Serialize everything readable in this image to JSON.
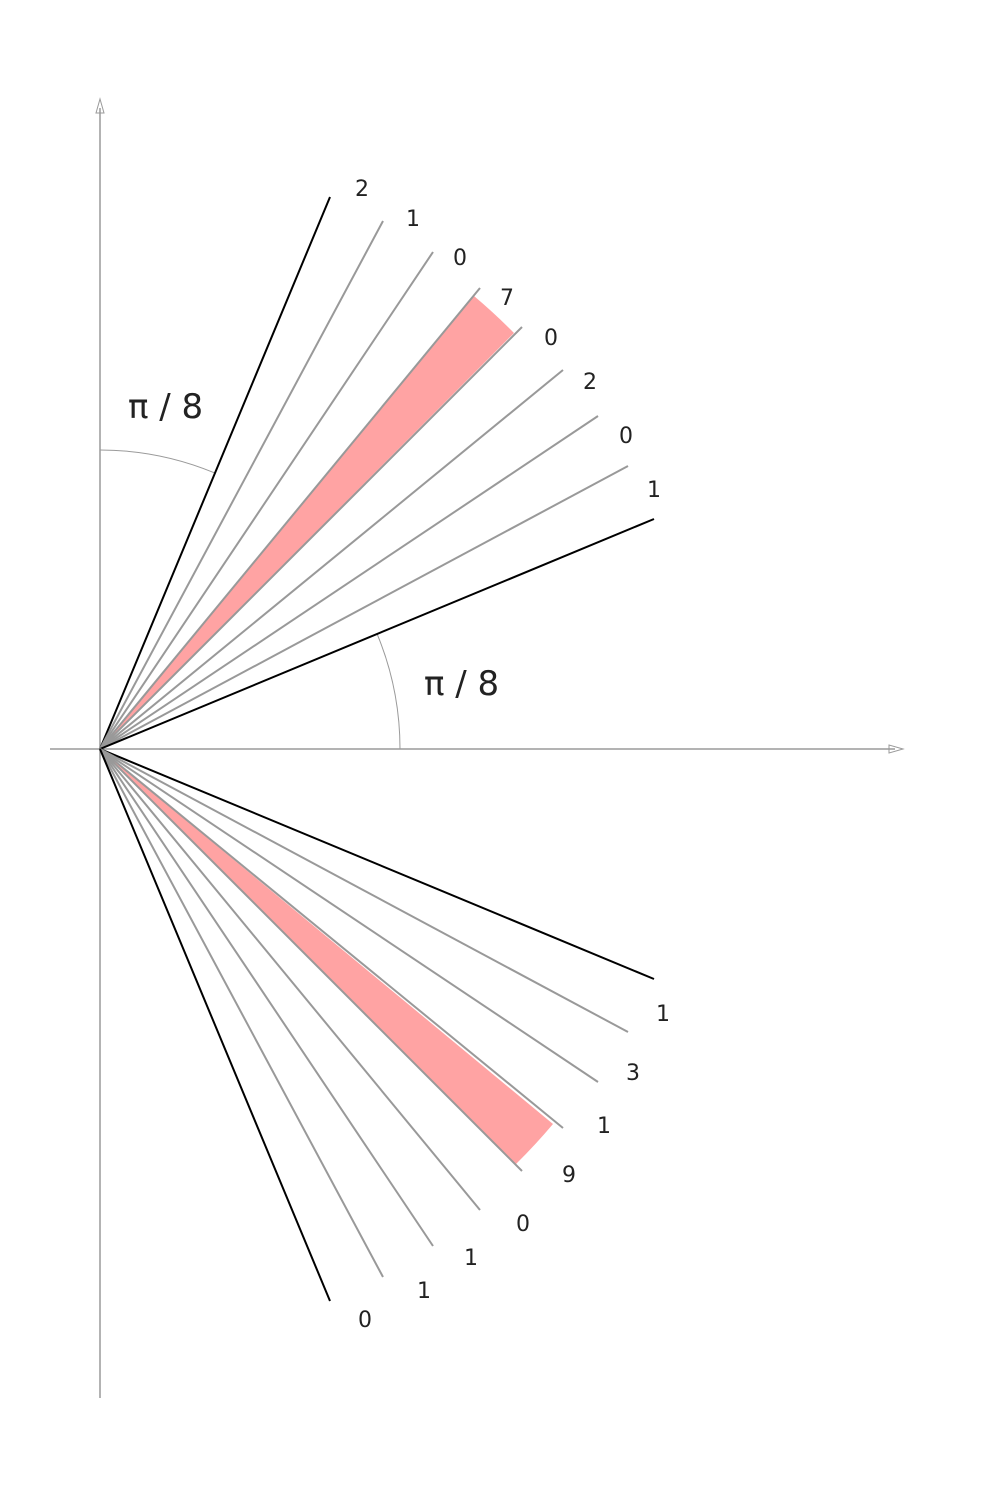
{
  "colors": {
    "axis": "#9a9a9a",
    "boundary_ray": "#000000",
    "inner_ray": "#999999",
    "highlight": "#ffa3a3",
    "text": "#222222"
  },
  "angle_labels": {
    "upper": "π / 8",
    "lower": "π / 8"
  },
  "upper_fan": {
    "digits": [
      "2",
      "1",
      "0",
      "7",
      "0",
      "2",
      "0",
      "1"
    ],
    "highlight_index": 3
  },
  "lower_fan": {
    "digits": [
      "1",
      "3",
      "1",
      "9",
      "0",
      "1",
      "1",
      "0"
    ],
    "highlight_index": 3
  }
}
